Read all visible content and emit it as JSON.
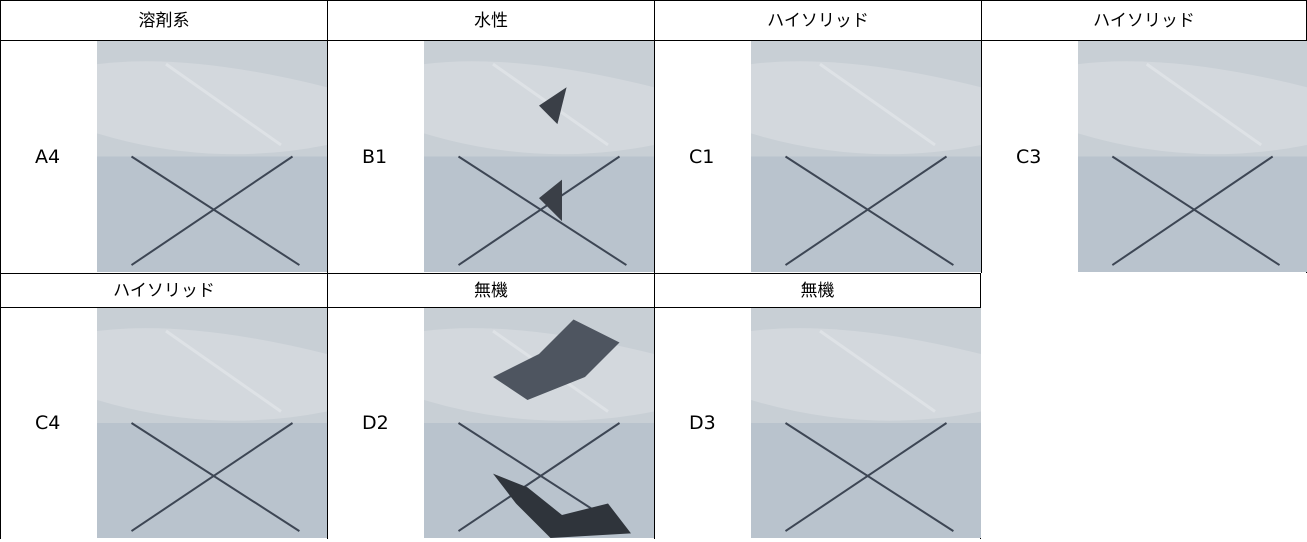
{
  "table": {
    "rows": [
      [
        {
          "heading": "溶剤系",
          "label": "A4"
        },
        {
          "heading": "水性",
          "label": "B1"
        },
        {
          "heading": "ハイソリッド",
          "label": "C1"
        },
        {
          "heading": "ハイソリッド",
          "label": "C3"
        }
      ],
      [
        {
          "heading": "ハイソリッド",
          "label": "C4"
        },
        {
          "heading": "無機",
          "label": "D2"
        },
        {
          "heading": "無機",
          "label": "D3"
        }
      ]
    ]
  }
}
